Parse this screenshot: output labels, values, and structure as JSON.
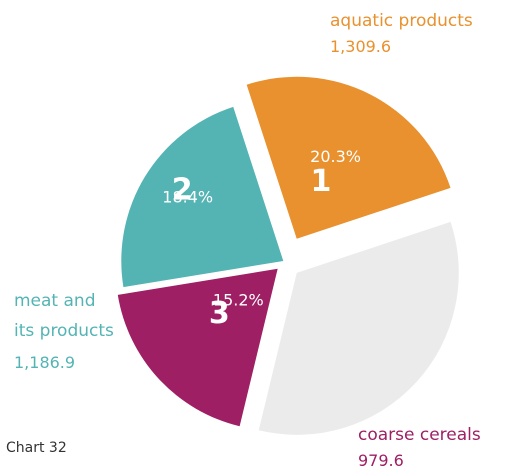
{
  "caption": "Chart 32",
  "chart_data": {
    "type": "pie",
    "slices": [
      {
        "rank": "1",
        "name": "aquatic products",
        "value": "1,309.6",
        "percent": "20.3%",
        "pct": 20.3,
        "color": "#E8912E"
      },
      {
        "rank": "",
        "name": "",
        "value": "",
        "percent": "",
        "pct": 27.6,
        "color": "#EBEBEB"
      },
      {
        "rank": "3",
        "name": "coarse cereals",
        "value": "979.6",
        "percent": "15.2%",
        "pct": 15.2,
        "color": "#9E1F63"
      },
      {
        "rank": "2",
        "name": "meat and its products",
        "value": "1,186.9",
        "percent": "18.4%",
        "pct": 18.4,
        "color": "#54B4B3"
      }
    ]
  }
}
